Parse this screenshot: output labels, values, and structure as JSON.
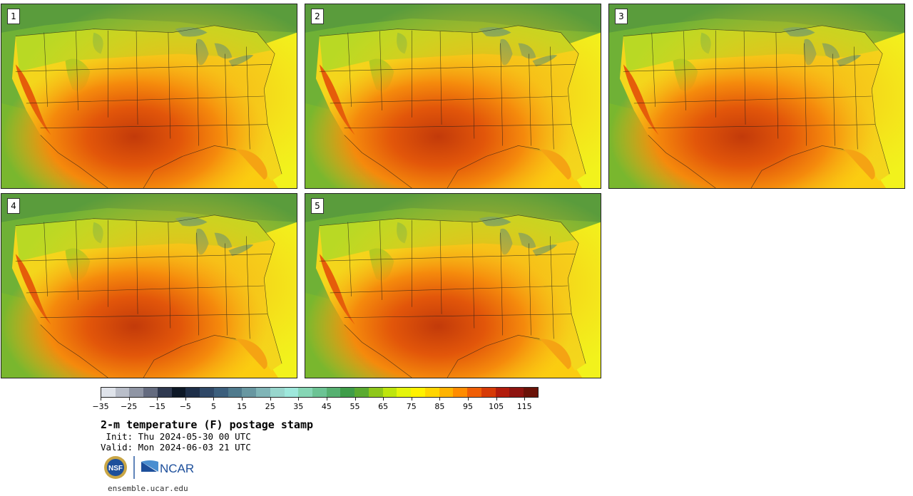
{
  "stamps": [
    {
      "label": "1"
    },
    {
      "label": "2"
    },
    {
      "label": "3"
    },
    {
      "label": "4"
    },
    {
      "label": "5"
    }
  ],
  "colorbar": {
    "colors": [
      "#dfe3ea",
      "#b9bec9",
      "#8f95a4",
      "#646b7f",
      "#2f3950",
      "#0d1827",
      "#1e2f49",
      "#2f4867",
      "#3c5f7d",
      "#4f7a8d",
      "#6897a1",
      "#80b5b7",
      "#98d6cd",
      "#9ee8dc",
      "#86d6b5",
      "#6cc394",
      "#56b071",
      "#3f9d49",
      "#5aaa30",
      "#8ec71a",
      "#bde50d",
      "#e4f40b",
      "#fff200",
      "#ffd500",
      "#ffb300",
      "#ff8c00",
      "#ef5e05",
      "#d63a06",
      "#b21c0c",
      "#8e1410",
      "#6a1208"
    ],
    "ticks": [
      "−35",
      "−25",
      "−15",
      "−5",
      "5",
      "15",
      "25",
      "35",
      "45",
      "55",
      "65",
      "75",
      "85",
      "95",
      "105",
      "115"
    ]
  },
  "title": "2-m temperature (F) postage stamp",
  "init": " Init: Thu 2024-05-30 00 UTC",
  "valid": "Valid: Mon 2024-06-03 21 UTC",
  "logos": {
    "nsf": "NSF",
    "ncar": "NCAR"
  },
  "site": "ensemble.ucar.edu"
}
